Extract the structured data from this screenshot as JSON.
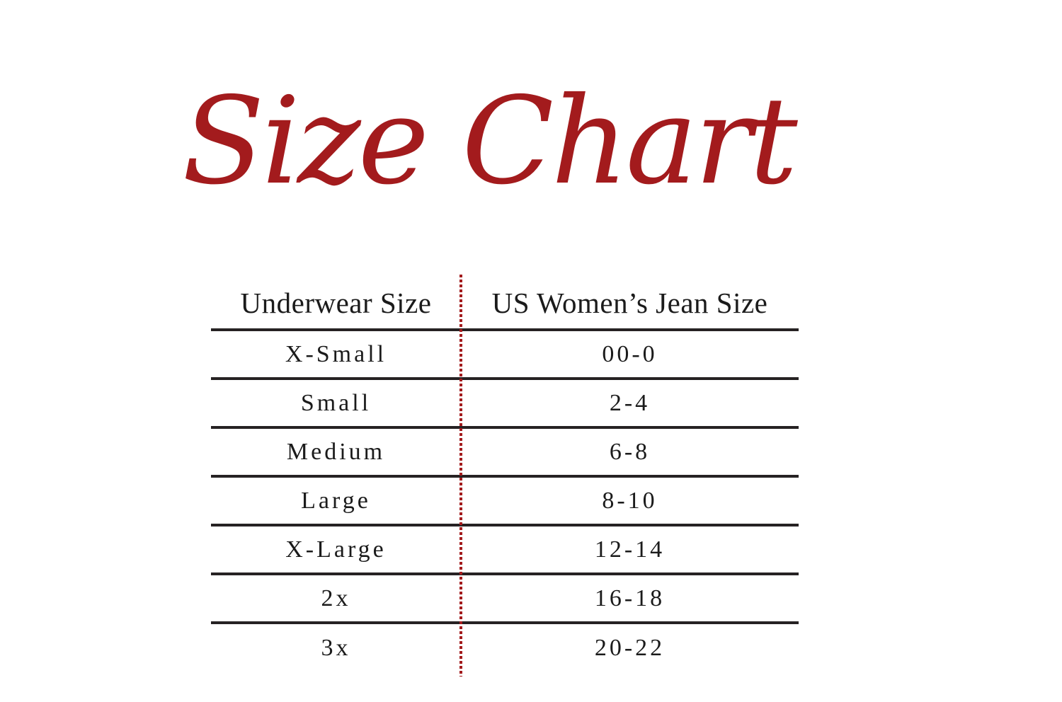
{
  "title": {
    "text": "Size Chart"
  },
  "colors": {
    "accent_red": "#A31B1D",
    "rule_dark": "#262223",
    "text": "#1B1B1B",
    "background": "#FFFFFF"
  },
  "chart_data": {
    "type": "table",
    "title": "Size Chart",
    "columns": [
      "Underwear Size",
      "US Women’s Jean Size"
    ],
    "rows": [
      [
        "X-Small",
        "00-0"
      ],
      [
        "Small",
        "2-4"
      ],
      [
        "Medium",
        "6-8"
      ],
      [
        "Large",
        "8-10"
      ],
      [
        "X-Large",
        "12-14"
      ],
      [
        "2x",
        "16-18"
      ],
      [
        "3x",
        "20-22"
      ]
    ],
    "layout": {
      "column_divider_style": "dotted-red-vertical",
      "row_separator_style": "solid-dark-horizontal",
      "last_row_has_bottom_rule": false
    }
  }
}
